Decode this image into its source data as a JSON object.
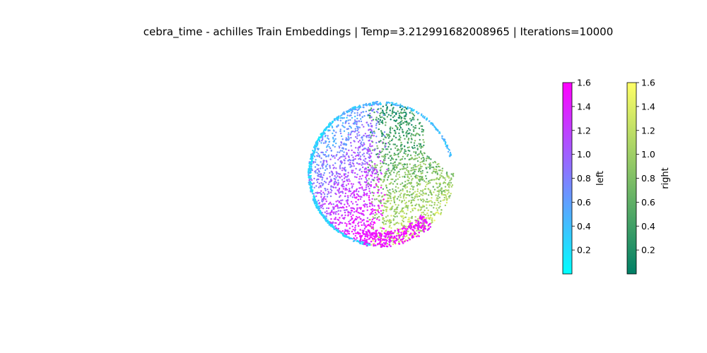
{
  "chart_data": {
    "type": "scatter",
    "title": "cebra_time - achilles Train Embeddings | Temp=3.212991682008965 | Iterations=10000",
    "axes_visible": false,
    "projection": "3d",
    "description_of_points": "Embedding points lie on a sphere surface; colored by position along left run (cool colormap) and right run (summer colormap).",
    "series": [
      {
        "name": "left",
        "colormap": "cool",
        "color_min": "#00ffff",
        "color_max": "#ff00ff",
        "value_range": [
          0.0,
          1.6
        ]
      },
      {
        "name": "right",
        "colormap": "summer",
        "color_min": "#007f66",
        "color_max": "#ffff66",
        "value_range": [
          0.0,
          1.6
        ]
      }
    ],
    "colorbars": [
      {
        "label": "left",
        "colormap": "cool",
        "ticks": [
          "0.2",
          "0.4",
          "0.6",
          "0.8",
          "1.0",
          "1.2",
          "1.4",
          "1.6"
        ]
      },
      {
        "label": "right",
        "colormap": "summer",
        "ticks": [
          "0.2",
          "0.4",
          "0.6",
          "0.8",
          "1.0",
          "1.2",
          "1.4",
          "1.6"
        ]
      }
    ]
  }
}
